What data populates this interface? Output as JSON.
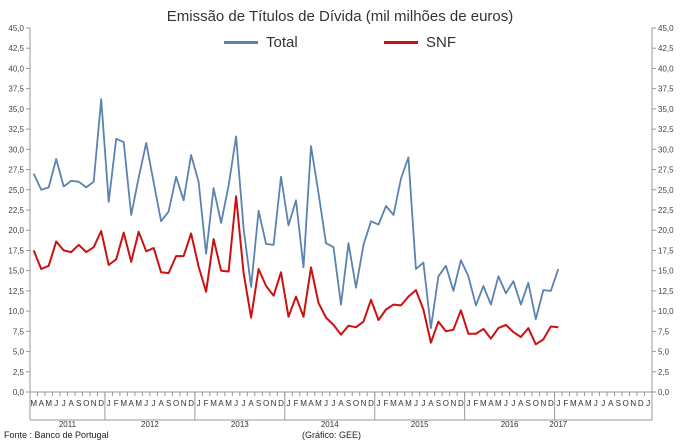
{
  "chart_data": {
    "type": "line",
    "title": "Emissão de Títulos de Dívida (mil milhões de euros)",
    "source": "Fonte : Banco de Portugal",
    "credit": "(Gráfico: GEE)",
    "ylim": [
      0,
      45
    ],
    "y_ticks": [
      "0,0",
      "2,5",
      "5,0",
      "7,5",
      "10,0",
      "12,5",
      "15,0",
      "17,5",
      "20,0",
      "22,5",
      "25,0",
      "27,5",
      "30,0",
      "32,5",
      "35,0",
      "37,5",
      "40,0",
      "42,5",
      "45,0"
    ],
    "month_labels": [
      "M",
      "A",
      "M",
      "J",
      "J",
      "A",
      "S",
      "O",
      "N",
      "D",
      "J",
      "F",
      "M",
      "A",
      "M",
      "J",
      "J",
      "A",
      "S",
      "O",
      "N",
      "D",
      "J",
      "F",
      "M",
      "A",
      "M",
      "J",
      "J",
      "A",
      "S",
      "O",
      "N",
      "D",
      "J",
      "F",
      "M",
      "A",
      "M",
      "J",
      "J",
      "A",
      "S",
      "O",
      "N",
      "D",
      "J",
      "F",
      "M",
      "A",
      "M",
      "J",
      "J",
      "A",
      "S",
      "O",
      "N",
      "D",
      "J",
      "F",
      "M",
      "A",
      "M",
      "J",
      "J",
      "A",
      "S",
      "O",
      "N",
      "D",
      "J",
      "F",
      "M",
      "A",
      "M",
      "J",
      "J",
      "A",
      "S",
      "O",
      "N",
      "D",
      "J"
    ],
    "year_labels": [
      {
        "label": "2011",
        "start": 0,
        "end": 9
      },
      {
        "label": "2012",
        "start": 10,
        "end": 21
      },
      {
        "label": "2013",
        "start": 22,
        "end": 33
      },
      {
        "label": "2014",
        "start": 34,
        "end": 45
      },
      {
        "label": "2015",
        "start": 46,
        "end": 57
      },
      {
        "label": "2016",
        "start": 58,
        "end": 69
      },
      {
        "label": "2017",
        "start": 70,
        "end": 70
      }
    ],
    "grid": false,
    "legend_position": "top",
    "series": [
      {
        "name": "Total",
        "color": "#5b82b0",
        "values": [
          27.0,
          25.0,
          25.3,
          28.8,
          25.4,
          26.1,
          26.0,
          25.3,
          26.0,
          36.2,
          23.5,
          31.3,
          30.9,
          21.9,
          26.5,
          30.8,
          25.9,
          21.1,
          22.3,
          26.6,
          23.7,
          29.3,
          26.0,
          17.1,
          25.2,
          20.9,
          25.5,
          31.6,
          20.2,
          13.0,
          22.4,
          18.3,
          18.2,
          26.6,
          20.6,
          23.7,
          15.4,
          30.4,
          24.6,
          18.4,
          17.9,
          10.8,
          18.4,
          12.9,
          18.2,
          21.1,
          20.7,
          23.0,
          21.9,
          26.4,
          29.0,
          15.2,
          16.0,
          7.9,
          14.3,
          15.6,
          12.5,
          16.3,
          14.3,
          10.7,
          13.1,
          10.8,
          14.3,
          12.2,
          13.7,
          10.8,
          13.5,
          9.0,
          12.6,
          12.5,
          15.2
        ]
      },
      {
        "name": "SNF",
        "color": "#cc1111",
        "values": [
          17.5,
          15.2,
          15.6,
          18.6,
          17.5,
          17.3,
          18.2,
          17.3,
          17.9,
          19.9,
          15.7,
          16.4,
          19.7,
          16.1,
          19.8,
          17.4,
          17.8,
          14.8,
          14.7,
          16.8,
          16.8,
          19.6,
          15.5,
          12.4,
          18.9,
          15.0,
          14.9,
          24.2,
          14.7,
          9.2,
          15.2,
          13.1,
          11.9,
          14.8,
          9.3,
          11.8,
          9.3,
          15.4,
          11.0,
          9.2,
          8.3,
          7.1,
          8.2,
          8.0,
          8.7,
          11.4,
          8.9,
          10.2,
          10.8,
          10.7,
          11.8,
          12.6,
          10.2,
          6.1,
          8.7,
          7.5,
          7.7,
          10.1,
          7.2,
          7.2,
          7.8,
          6.6,
          7.9,
          8.3,
          7.4,
          6.8,
          7.9,
          5.9,
          6.5,
          8.1,
          8.0
        ]
      }
    ]
  }
}
